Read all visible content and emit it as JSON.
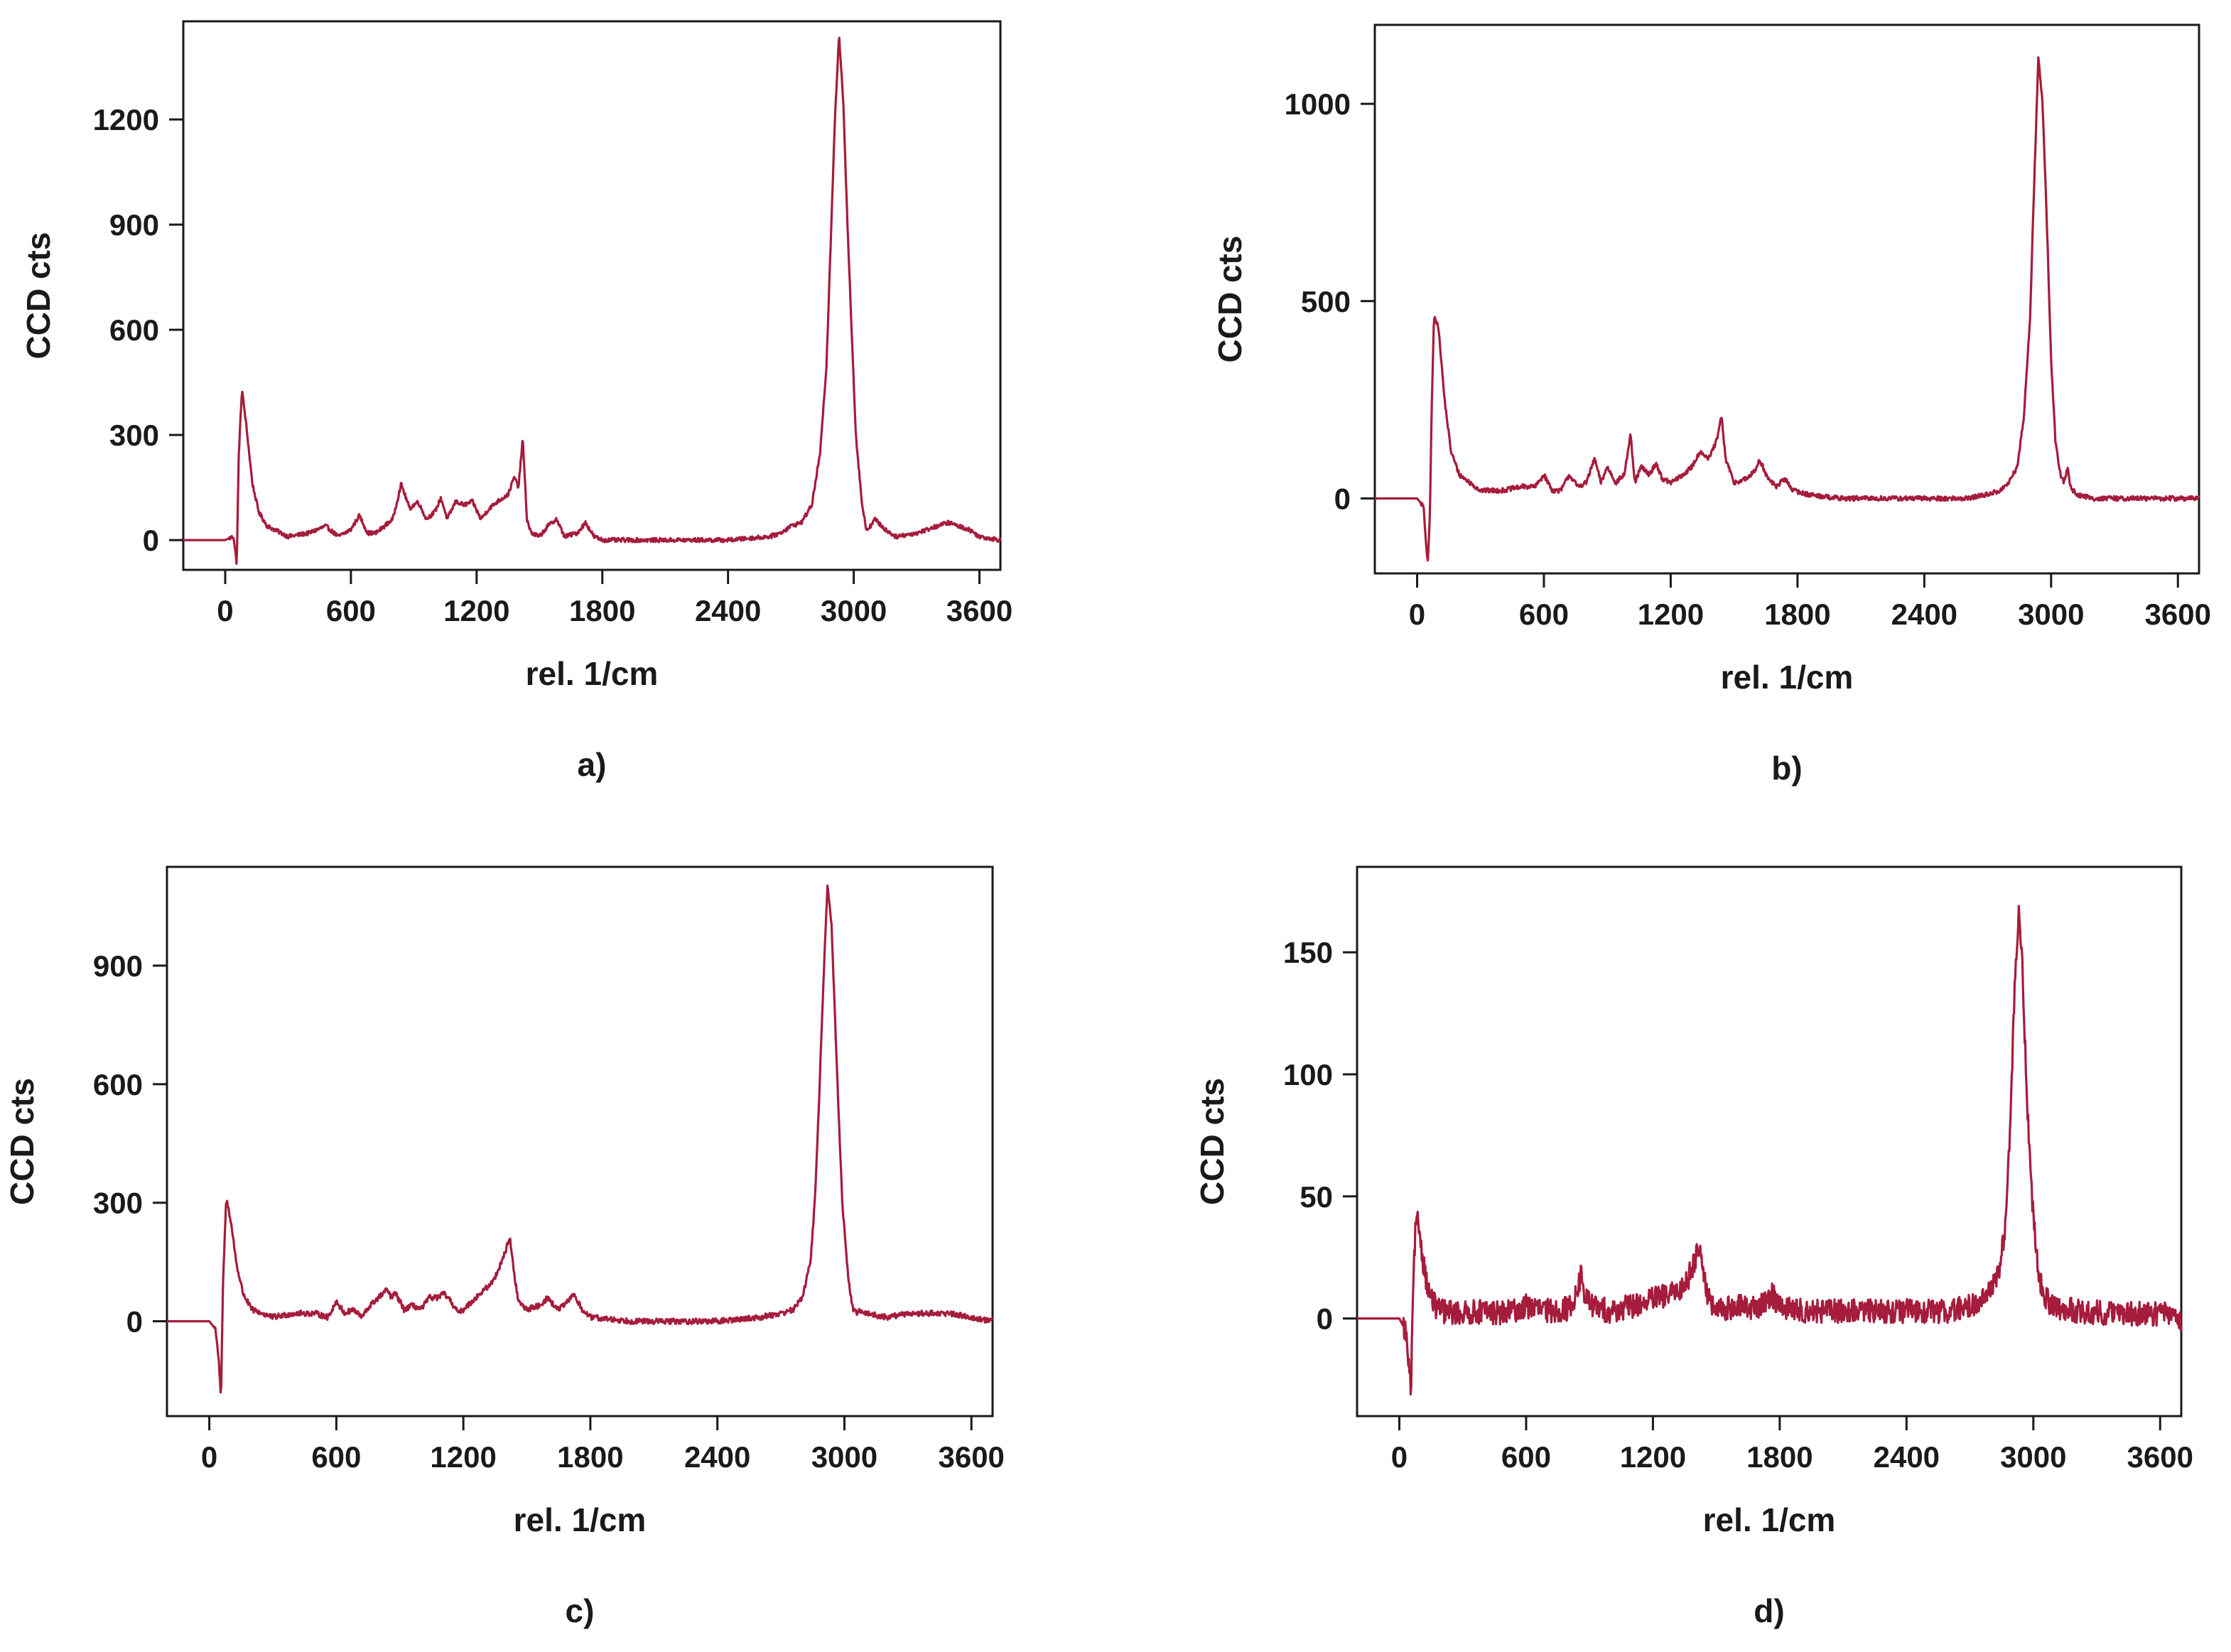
{
  "figure": {
    "line_color": "#a51c3c",
    "axis_color": "#1a1a1a"
  },
  "chart_data": [
    {
      "type": "line",
      "panel_label": "a)",
      "xlabel": "rel. 1/cm",
      "ylabel": "CCD cts",
      "xlim": [
        -200,
        3700
      ],
      "ylim": [
        -85,
        1480
      ],
      "xticks": [
        0,
        600,
        1200,
        1800,
        2400,
        3000,
        3600
      ],
      "yticks": [
        0,
        300,
        600,
        900,
        1200
      ],
      "grid": false,
      "noise": 6,
      "series": [
        {
          "x": [
            -200,
            0,
            40,
            55,
            65,
            80,
            100,
            130,
            160,
            200,
            300,
            400,
            480,
            540,
            600,
            640,
            680,
            720,
            760,
            800,
            840,
            880,
            920,
            960,
            1000,
            1030,
            1060,
            1100,
            1140,
            1180,
            1220,
            1260,
            1300,
            1350,
            1380,
            1400,
            1420,
            1440,
            1460,
            1500,
            1540,
            1580,
            1620,
            1680,
            1720,
            1760,
            1800,
            2000,
            2200,
            2400,
            2600,
            2650,
            2700,
            2750,
            2800,
            2840,
            2870,
            2890,
            2910,
            2930,
            2950,
            2970,
            2990,
            3010,
            3040,
            3060,
            3080,
            3100,
            3150,
            3200,
            3300,
            3400,
            3450,
            3500,
            3550,
            3600,
            3700
          ],
          "y": [
            0,
            0,
            10,
            -70,
            250,
            430,
            330,
            160,
            80,
            40,
            10,
            20,
            40,
            10,
            30,
            70,
            20,
            20,
            40,
            60,
            160,
            90,
            110,
            60,
            80,
            120,
            60,
            110,
            100,
            110,
            60,
            90,
            110,
            130,
            180,
            150,
            290,
            60,
            20,
            10,
            40,
            60,
            10,
            20,
            50,
            10,
            0,
            0,
            0,
            0,
            10,
            20,
            40,
            50,
            100,
            250,
            500,
            850,
            1200,
            1440,
            1250,
            900,
            600,
            300,
            100,
            30,
            40,
            60,
            30,
            10,
            20,
            40,
            50,
            40,
            30,
            10,
            0
          ]
        }
      ]
    },
    {
      "type": "line",
      "panel_label": "b)",
      "xlabel": "rel. 1/cm",
      "ylabel": "CCD cts",
      "xlim": [
        -200,
        3700
      ],
      "ylim": [
        -190,
        1200
      ],
      "xticks": [
        0,
        600,
        1200,
        1800,
        2400,
        3000,
        3600
      ],
      "yticks": [
        0,
        500,
        1000
      ],
      "grid": false,
      "noise": 6,
      "series": [
        {
          "x": [
            -200,
            0,
            30,
            50,
            60,
            70,
            80,
            100,
            130,
            160,
            200,
            300,
            400,
            500,
            560,
            600,
            640,
            680,
            720,
            760,
            800,
            840,
            870,
            900,
            940,
            980,
            1010,
            1030,
            1060,
            1100,
            1130,
            1160,
            1200,
            1260,
            1300,
            1340,
            1380,
            1420,
            1440,
            1460,
            1500,
            1560,
            1600,
            1620,
            1660,
            1700,
            1740,
            1780,
            1850,
            2000,
            2200,
            2400,
            2600,
            2700,
            2760,
            2800,
            2840,
            2870,
            2900,
            2920,
            2940,
            2960,
            2980,
            3000,
            3020,
            3040,
            3060,
            3070,
            3080,
            3090,
            3120,
            3200,
            3400,
            3600,
            3700
          ],
          "y": [
            0,
            0,
            -20,
            -170,
            -50,
            250,
            460,
            440,
            250,
            120,
            60,
            20,
            20,
            30,
            30,
            60,
            20,
            20,
            60,
            30,
            40,
            100,
            40,
            80,
            40,
            60,
            160,
            40,
            80,
            60,
            90,
            50,
            40,
            60,
            80,
            120,
            100,
            150,
            210,
            100,
            40,
            50,
            70,
            100,
            50,
            30,
            50,
            20,
            10,
            0,
            0,
            0,
            0,
            10,
            20,
            40,
            80,
            200,
            450,
            800,
            1120,
            1000,
            700,
            350,
            150,
            70,
            40,
            60,
            80,
            30,
            10,
            0,
            0,
            0,
            0
          ]
        }
      ]
    },
    {
      "type": "line",
      "panel_label": "c)",
      "xlabel": "rel. 1/cm",
      "ylabel": "CCD cts",
      "xlim": [
        -200,
        3700
      ],
      "ylim": [
        -240,
        1150
      ],
      "xticks": [
        0,
        600,
        1200,
        1800,
        2400,
        3000,
        3600
      ],
      "yticks": [
        0,
        300,
        600,
        900
      ],
      "grid": false,
      "noise": 7,
      "series": [
        {
          "x": [
            -200,
            0,
            30,
            45,
            55,
            65,
            80,
            100,
            130,
            160,
            200,
            300,
            400,
            500,
            560,
            600,
            640,
            680,
            720,
            760,
            800,
            840,
            860,
            880,
            920,
            960,
            1000,
            1040,
            1080,
            1110,
            1140,
            1180,
            1220,
            1260,
            1300,
            1340,
            1380,
            1400,
            1420,
            1440,
            1460,
            1500,
            1560,
            1600,
            1640,
            1680,
            1720,
            1760,
            1800,
            2000,
            2200,
            2400,
            2600,
            2700,
            2760,
            2800,
            2840,
            2860,
            2880,
            2900,
            2920,
            2940,
            2960,
            2990,
            3020,
            3040,
            3060,
            3080,
            3100,
            3200,
            3300,
            3400,
            3500,
            3600,
            3700
          ],
          "y": [
            0,
            0,
            -20,
            -100,
            -200,
            100,
            310,
            260,
            140,
            70,
            30,
            10,
            20,
            20,
            10,
            50,
            20,
            30,
            10,
            40,
            60,
            80,
            60,
            70,
            30,
            40,
            30,
            60,
            60,
            70,
            50,
            20,
            40,
            60,
            80,
            100,
            150,
            180,
            210,
            120,
            50,
            30,
            40,
            60,
            30,
            40,
            70,
            30,
            10,
            0,
            0,
            0,
            10,
            20,
            30,
            60,
            150,
            300,
            550,
            850,
            1100,
            1000,
            700,
            300,
            100,
            30,
            20,
            30,
            20,
            10,
            20,
            20,
            20,
            10,
            0
          ]
        }
      ]
    },
    {
      "type": "line",
      "panel_label": "d)",
      "xlabel": "rel. 1/cm",
      "ylabel": "CCD cts",
      "xlim": [
        -200,
        3700
      ],
      "ylim": [
        -40,
        185
      ],
      "xticks": [
        0,
        600,
        1200,
        1800,
        2400,
        3000,
        3600
      ],
      "yticks": [
        0,
        50,
        100,
        150
      ],
      "grid": false,
      "noise": 5,
      "series": [
        {
          "x": [
            -200,
            0,
            30,
            45,
            55,
            65,
            75,
            90,
            110,
            140,
            170,
            200,
            300,
            400,
            500,
            600,
            700,
            800,
            840,
            860,
            880,
            940,
            1000,
            1100,
            1200,
            1300,
            1360,
            1400,
            1420,
            1440,
            1460,
            1480,
            1500,
            1600,
            1700,
            1760,
            1800,
            1900,
            2000,
            2200,
            2400,
            2600,
            2700,
            2760,
            2800,
            2840,
            2870,
            2890,
            2910,
            2930,
            2950,
            2970,
            3000,
            3030,
            3060,
            3100,
            3200,
            3400,
            3600,
            3700
          ],
          "y": [
            0,
            0,
            -5,
            -20,
            -30,
            10,
            35,
            40,
            25,
            10,
            5,
            3,
            2,
            3,
            2,
            5,
            3,
            4,
            10,
            18,
            8,
            4,
            3,
            5,
            8,
            10,
            15,
            25,
            30,
            20,
            8,
            5,
            3,
            5,
            4,
            10,
            5,
            3,
            3,
            3,
            3,
            3,
            5,
            8,
            12,
            20,
            40,
            80,
            130,
            168,
            140,
            90,
            40,
            15,
            8,
            5,
            3,
            2,
            2,
            0
          ]
        }
      ]
    }
  ]
}
